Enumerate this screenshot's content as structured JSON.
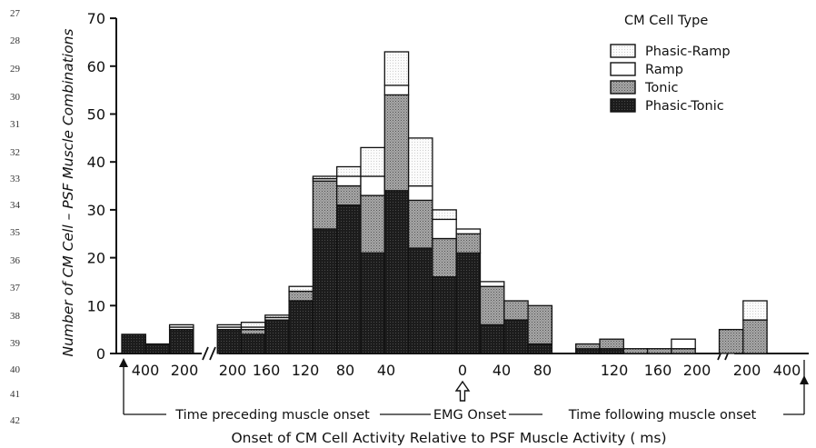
{
  "line_numbers": [
    "27",
    "28",
    "29",
    "30",
    "31",
    "32",
    "33",
    "34",
    "35",
    "36",
    "37",
    "38",
    "39",
    "40",
    "41",
    "42"
  ],
  "chart_data": {
    "type": "bar",
    "stacked": true,
    "ylabel": "Number of CM Cell – PSF Muscle Combinations",
    "xlabel": "Onset of CM Cell Activity Relative to PSF Muscle Activity ( ms)",
    "ylim": [
      0,
      70
    ],
    "yticks": [
      "0",
      "10",
      "20",
      "30",
      "40",
      "50",
      "60",
      "70"
    ],
    "xticks": [
      "400",
      "200",
      "200",
      "160",
      "120",
      "80",
      "40",
      "0",
      "40",
      "80",
      "120",
      "160",
      "200",
      "200",
      "400"
    ],
    "axis_breaks": 2,
    "grid": false,
    "legend": {
      "title": "CM Cell Type",
      "position": "top-right"
    },
    "colors": {
      "Phasic-Ramp": "#f2f2f2",
      "Ramp": "#ffffff",
      "Tonic": "#9a9a9a",
      "Phasic-Tonic": "#222222"
    },
    "bins": [
      "p400",
      "p300",
      "p200",
      "p200b",
      "p180",
      "p160",
      "p140",
      "p120",
      "p100",
      "p80",
      "p60",
      "p40",
      "p20",
      "0",
      "f20",
      "f40",
      "f60",
      "f80",
      "f100",
      "f120",
      "f140",
      "f160",
      "f180",
      "f200",
      "f200b",
      "f300",
      "f400"
    ],
    "series": [
      {
        "name": "Phasic-Tonic",
        "values": [
          4,
          2,
          5,
          null,
          5,
          4,
          7,
          11,
          26,
          31,
          21,
          34,
          22,
          16,
          21,
          6,
          7,
          2,
          0,
          1,
          1,
          0,
          0,
          0,
          0,
          0,
          0
        ]
      },
      {
        "name": "Tonic",
        "values": [
          0,
          0,
          0,
          null,
          0,
          1,
          0,
          2,
          10,
          4,
          12,
          20,
          10,
          8,
          4,
          8,
          4,
          8,
          0,
          1,
          2,
          1,
          1,
          1,
          0,
          5,
          7
        ]
      },
      {
        "name": "Ramp",
        "values": [
          0,
          0,
          0.5,
          null,
          0.5,
          0.5,
          0.5,
          0,
          0.5,
          2,
          4,
          2,
          3,
          4,
          1,
          1,
          0,
          0,
          0,
          0,
          0,
          0,
          0,
          2,
          0,
          0,
          0
        ]
      },
      {
        "name": "Phasic-Ramp",
        "values": [
          0,
          0,
          0.5,
          null,
          0.5,
          1,
          0.5,
          1,
          0.5,
          2,
          6,
          7,
          10,
          2,
          0,
          0,
          0,
          0,
          0,
          0,
          0,
          0,
          0,
          0,
          0,
          0,
          4
        ]
      }
    ],
    "annotations": {
      "left": "Time preceding muscle onset",
      "center": "EMG Onset",
      "right": "Time following muscle onset"
    }
  }
}
